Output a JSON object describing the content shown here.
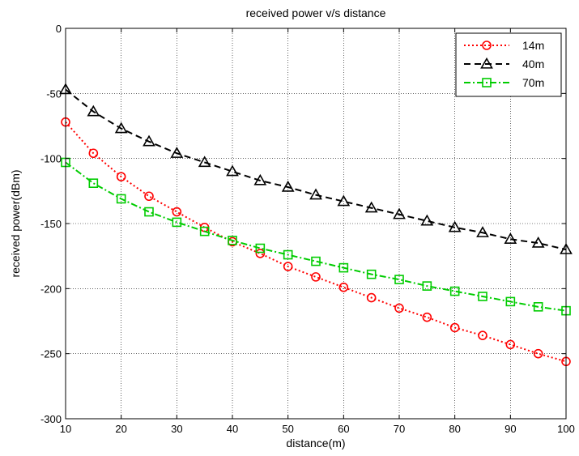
{
  "chart_data": {
    "type": "line",
    "title": "received power v/s distance",
    "xlabel": "distance(m)",
    "ylabel": "received power(dBm)",
    "xlim": [
      10,
      100
    ],
    "ylim": [
      -300,
      0
    ],
    "xticks": [
      10,
      20,
      30,
      40,
      50,
      60,
      70,
      80,
      90,
      100
    ],
    "yticks": [
      0,
      -50,
      -100,
      -150,
      -200,
      -250,
      -300
    ],
    "grid": true,
    "legend_position": "top-right",
    "x": [
      10,
      15,
      20,
      25,
      30,
      35,
      40,
      45,
      50,
      55,
      60,
      65,
      70,
      75,
      80,
      85,
      90,
      95,
      100
    ],
    "series": [
      {
        "name": "14m",
        "color": "#ff0000",
        "marker": "circle",
        "line_style": "dotted",
        "values": [
          -72,
          -96,
          -114,
          -129,
          -141,
          -153,
          -164,
          -173,
          -183,
          -191,
          -199,
          -207,
          -215,
          -222,
          -230,
          -236,
          -243,
          -250,
          -256
        ]
      },
      {
        "name": "40m",
        "color": "#000000",
        "marker": "triangle",
        "line_style": "dashed",
        "values": [
          -47,
          -64,
          -77,
          -87,
          -96,
          -103,
          -110,
          -117,
          -122,
          -128,
          -133,
          -138,
          -143,
          -148,
          -153,
          -157,
          -162,
          -165,
          -170
        ]
      },
      {
        "name": "70m",
        "color": "#00cc00",
        "marker": "square",
        "line_style": "dash-dot",
        "values": [
          -103,
          -119,
          -131,
          -141,
          -149,
          -156,
          -163,
          -169,
          -174,
          -179,
          -184,
          -189,
          -193,
          -198,
          -202,
          -206,
          -210,
          -214,
          -217
        ]
      }
    ]
  }
}
